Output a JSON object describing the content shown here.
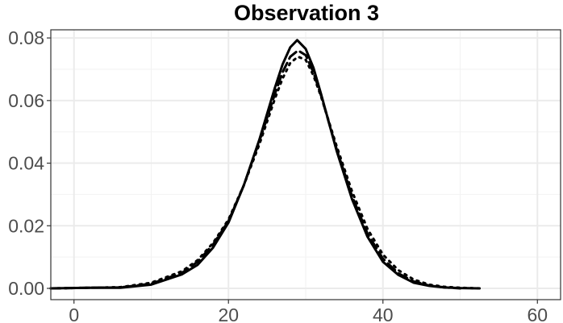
{
  "chart_data": {
    "type": "line",
    "title": "Observation 3",
    "xlabel": "",
    "ylabel": "",
    "xlim": [
      -3,
      63
    ],
    "ylim": [
      -0.0036,
      0.0826
    ],
    "x_ticks": [
      0,
      20,
      40,
      60
    ],
    "x_tick_labels": [
      "0",
      "20",
      "40",
      "60"
    ],
    "y_ticks": [
      0.0,
      0.02,
      0.04,
      0.06,
      0.08
    ],
    "y_tick_labels": [
      "0.00",
      "0.02",
      "0.04",
      "0.06",
      "0.08"
    ],
    "grid": true,
    "legend": "none",
    "series": [
      {
        "line_style": "solid",
        "color": "#000000",
        "x": [
          -3,
          2,
          6,
          10,
          14,
          16,
          18,
          20,
          22,
          24,
          26,
          27,
          28,
          28.9,
          30,
          31,
          32,
          34,
          36,
          38,
          40,
          42,
          44,
          46,
          48,
          50,
          52.5
        ],
        "y": [
          0.0,
          0.0002,
          0.0002,
          0.0012,
          0.0045,
          0.0075,
          0.013,
          0.021,
          0.033,
          0.0475,
          0.064,
          0.0715,
          0.077,
          0.0793,
          0.0765,
          0.0705,
          0.062,
          0.044,
          0.0285,
          0.0165,
          0.0085,
          0.0043,
          0.0018,
          0.0008,
          0.0003,
          0.0001,
          0.0
        ]
      },
      {
        "line_style": "dashed",
        "color": "#000000",
        "x": [
          -3,
          2,
          6,
          10,
          14,
          16,
          18,
          20,
          22,
          24,
          26,
          27,
          28,
          29,
          30,
          31,
          32,
          34,
          36,
          38,
          40,
          42,
          44,
          46,
          48,
          50
        ],
        "y": [
          0.0,
          0.0002,
          0.0003,
          0.0015,
          0.005,
          0.0085,
          0.014,
          0.0215,
          0.033,
          0.047,
          0.062,
          0.069,
          0.074,
          0.076,
          0.0745,
          0.069,
          0.0615,
          0.0445,
          0.0295,
          0.0175,
          0.0095,
          0.0048,
          0.0022,
          0.0009,
          0.0003,
          0.0
        ]
      },
      {
        "line_style": "dotted",
        "color": "#000000",
        "x": [
          -3,
          2,
          6,
          10,
          14,
          16,
          18,
          20,
          22,
          24,
          26,
          27,
          28,
          29,
          30,
          31,
          32,
          34,
          36,
          38,
          40,
          42,
          44,
          46,
          48,
          50,
          52.5
        ],
        "y": [
          0.0,
          0.0002,
          0.0004,
          0.0018,
          0.0055,
          0.009,
          0.0145,
          0.022,
          0.033,
          0.046,
          0.0605,
          0.067,
          0.072,
          0.074,
          0.073,
          0.068,
          0.0612,
          0.0455,
          0.031,
          0.019,
          0.0108,
          0.0058,
          0.0028,
          0.0012,
          0.0005,
          0.0002,
          0.0
        ]
      }
    ]
  }
}
